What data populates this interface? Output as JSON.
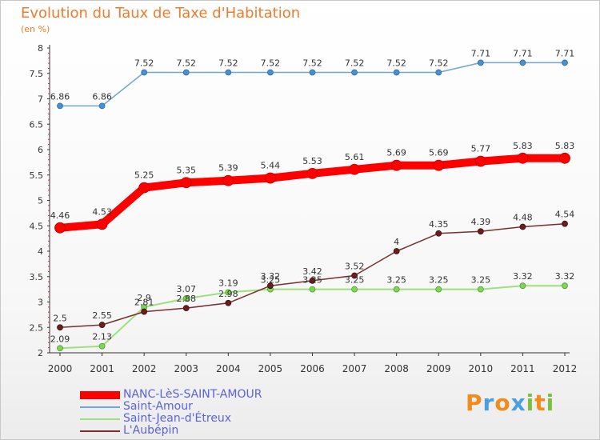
{
  "title": "Evolution du Taux de Taxe d'Habitation",
  "subtitle": "(en %)",
  "logo": {
    "letters": [
      "P",
      "r",
      "o",
      "x",
      "i",
      "t",
      "i"
    ],
    "colors": [
      "#f28a1e",
      "#4a9fdc",
      "#f28a1e",
      "#4a9fdc",
      "#7ac143",
      "#f28a1e",
      "#7ac143"
    ]
  },
  "chart_data": {
    "type": "line",
    "title": "Evolution du Taux de Taxe d'Habitation",
    "ylabel": "(en %)",
    "xlabel": "",
    "ylim": [
      2,
      8
    ],
    "yticks": [
      "2",
      "2.5",
      "3",
      "3.5",
      "4",
      "4.5",
      "5",
      "5.5",
      "6",
      "6.5",
      "7",
      "7.5",
      "8"
    ],
    "x": [
      "2000",
      "2001",
      "2002",
      "2003",
      "2004",
      "2005",
      "2006",
      "2007",
      "2008",
      "2009",
      "2010",
      "2011",
      "2012"
    ],
    "grid": false,
    "legend_position": "bottom-left",
    "series": [
      {
        "name": "NANC-LèS-SAINT-AMOUR",
        "color": "#ff0000",
        "values": [
          4.46,
          4.53,
          5.25,
          5.35,
          5.39,
          5.44,
          5.53,
          5.61,
          5.69,
          5.69,
          5.77,
          5.83,
          5.83
        ],
        "labels": [
          "4.46",
          "4.53",
          "5.25",
          "5.35",
          "5.39",
          "5.44",
          "5.53",
          "5.61",
          "5.69",
          "5.69",
          "5.77",
          "5.83",
          "5.83"
        ]
      },
      {
        "name": "Saint-Amour",
        "color": "#6fa6d6",
        "values": [
          6.86,
          6.86,
          7.52,
          7.52,
          7.52,
          7.52,
          7.52,
          7.52,
          7.52,
          7.52,
          7.71,
          7.71,
          7.71
        ],
        "labels": [
          "6.86",
          "6.86",
          "7.52",
          "7.52",
          "7.52",
          "7.52",
          "7.52",
          "7.52",
          "7.52",
          "7.52",
          "7.71",
          "7.71",
          "7.71"
        ]
      },
      {
        "name": "Saint-Jean-d'Étreux",
        "color": "#9ee07e",
        "values": [
          2.09,
          2.13,
          2.9,
          3.07,
          3.19,
          3.25,
          3.25,
          3.25,
          3.25,
          3.25,
          3.25,
          3.32,
          3.32
        ],
        "labels": [
          "2.09",
          "2.13",
          "2.9",
          "3.07",
          "3.19",
          "3.25",
          "3.25",
          "3.25",
          "3.25",
          "3.25",
          "3.25",
          "3.32",
          "3.32"
        ]
      },
      {
        "name": "L'Aubépin",
        "color": "#7a2e2e",
        "values": [
          2.5,
          2.55,
          2.81,
          2.88,
          2.98,
          3.32,
          3.42,
          3.52,
          4.0,
          4.35,
          4.39,
          4.48,
          4.54
        ],
        "labels": [
          "2.5",
          "2.55",
          "2.81",
          "2.88",
          "2.98",
          "3.32",
          "3.42",
          "3.52",
          "4",
          "4.35",
          "4.39",
          "4.48",
          "4.54"
        ]
      }
    ]
  }
}
